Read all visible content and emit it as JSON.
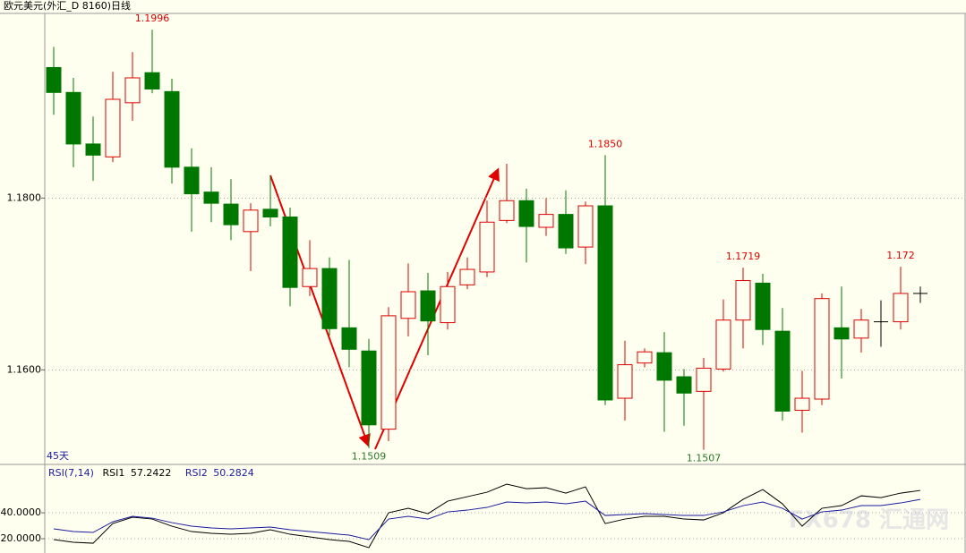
{
  "chart_data": [
    {
      "type": "candlestick",
      "title": "欧元美元(外汇_D 8160)日线",
      "period_label": "45天",
      "up_color": "#dd0000",
      "down_color": "#007800",
      "doji_color": "#000000",
      "series": {
        "open": [
          1.1952,
          1.1923,
          1.1863,
          1.1848,
          1.1911,
          1.1946,
          1.1924,
          1.1836,
          1.1807,
          1.1793,
          1.1761,
          1.1787,
          1.1778,
          1.1697,
          1.1718,
          1.1649,
          1.1622,
          1.1531,
          1.166,
          1.1692,
          1.1655,
          1.1699,
          1.1714,
          1.1774,
          1.1797,
          1.1766,
          1.1781,
          1.1743,
          1.1791,
          1.1567,
          1.1608,
          1.162,
          1.1592,
          1.1575,
          1.1601,
          1.1658,
          1.1701,
          1.1645,
          1.1553,
          1.1566,
          1.1649,
          1.1637,
          1.1656,
          1.1656,
          1.1689
        ],
        "high": [
          1.1976,
          1.194,
          1.1895,
          1.1947,
          1.197,
          1.1996,
          1.1939,
          1.1858,
          1.1836,
          1.1822,
          1.1794,
          1.1826,
          1.1789,
          1.1751,
          1.1731,
          1.1728,
          1.1636,
          1.1673,
          1.1724,
          1.1713,
          1.1714,
          1.1731,
          1.1797,
          1.184,
          1.1811,
          1.18,
          1.1809,
          1.1796,
          1.185,
          1.1634,
          1.1625,
          1.1644,
          1.1601,
          1.1614,
          1.1682,
          1.1719,
          1.1712,
          1.1672,
          1.1599,
          1.1689,
          1.1697,
          1.1671,
          1.1681,
          1.172,
          1.1697
        ],
        "low": [
          1.1897,
          1.1836,
          1.182,
          1.1842,
          1.189,
          1.1922,
          1.1817,
          1.1761,
          1.1772,
          1.1751,
          1.1715,
          1.1767,
          1.1674,
          1.1686,
          1.164,
          1.1603,
          1.1509,
          1.1517,
          1.1639,
          1.1617,
          1.1647,
          1.1694,
          1.1708,
          1.1771,
          1.1725,
          1.1756,
          1.1735,
          1.1723,
          1.1559,
          1.1541,
          1.1603,
          1.1528,
          1.1535,
          1.1507,
          1.1598,
          1.1625,
          1.1629,
          1.1541,
          1.1527,
          1.1559,
          1.159,
          1.162,
          1.1627,
          1.1647,
          1.1678
        ],
        "close": [
          1.1923,
          1.1863,
          1.185,
          1.1915,
          1.194,
          1.1927,
          1.1836,
          1.1805,
          1.1794,
          1.1769,
          1.1786,
          1.1778,
          1.1696,
          1.1718,
          1.1648,
          1.1624,
          1.1536,
          1.1663,
          1.1691,
          1.1657,
          1.1697,
          1.1717,
          1.1772,
          1.1797,
          1.1767,
          1.1781,
          1.1742,
          1.1791,
          1.1565,
          1.1606,
          1.1621,
          1.1588,
          1.1573,
          1.1602,
          1.1658,
          1.1704,
          1.1647,
          1.1552,
          1.1567,
          1.1683,
          1.1636,
          1.1658,
          1.1656,
          1.1689,
          1.1689
        ]
      },
      "high_labels": [
        1.1996,
        {
          "value": 1.185,
          "label": "1.1850"
        },
        1.1719,
        1.172
      ],
      "high_label_color": "#dd0000",
      "low_labels": [
        1.1509,
        1.1507
      ],
      "low_label_color": "#2a7a2a",
      "ylim": [
        1.1491,
        1.2015
      ],
      "yticks": [
        {
          "value": 1.18,
          "label": "1.1800"
        },
        {
          "value": 1.16,
          "label": "1.1600"
        }
      ],
      "grid": true,
      "watermark": "FX678 汇通网"
    },
    {
      "type": "line",
      "title": "RSI(7,14)",
      "series": [
        {
          "name": "RSI1",
          "color": "#000000",
          "values": [
            19.31,
            17.24,
            16.55,
            31.72,
            36.55,
            35.17,
            29.66,
            25.52,
            24.14,
            23.45,
            24.14,
            26.9,
            23.45,
            21.38,
            19.31,
            17.93,
            13.1,
            40,
            43.45,
            39.31,
            48.97,
            52.41,
            55.86,
            62.07,
            58.62,
            59.31,
            55.17,
            60,
            31.72,
            35.17,
            37.24,
            37.24,
            35.17,
            34.48,
            40,
            50.34,
            57.93,
            46.9,
            29.66,
            43.45,
            45.52,
            53.1,
            51.72,
            55.17,
            57.2422
          ]
        },
        {
          "name": "RSI2",
          "color": "#1a1aa0",
          "values": [
            27.59,
            25.52,
            24.83,
            33.1,
            37.24,
            35.86,
            32.41,
            29.66,
            28.28,
            27.59,
            28.28,
            28.97,
            26.9,
            25.52,
            24.14,
            22.76,
            19.31,
            35.17,
            37.24,
            35.17,
            40.69,
            42.07,
            44.14,
            48.28,
            47.59,
            48.28,
            46.9,
            48.97,
            37.93,
            38.62,
            39.31,
            38.62,
            37.93,
            37.93,
            40.69,
            45.52,
            48.28,
            43.45,
            35.17,
            40.69,
            42.07,
            45.52,
            45.52,
            47.59,
            50.2824
          ]
        }
      ],
      "ylim": [
        9,
        76.6
      ],
      "yticks": [
        {
          "value": 40,
          "label": "40.0000"
        },
        {
          "value": 20,
          "label": "20.0000"
        }
      ],
      "grid": true
    }
  ]
}
